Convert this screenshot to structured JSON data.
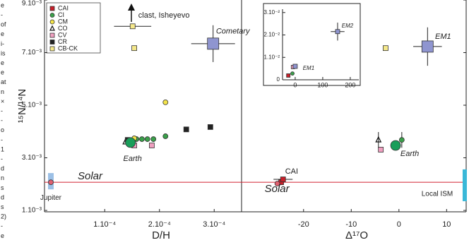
{
  "margin_text": [
    "e",
    "-",
    "of",
    "e",
    "i-",
    "is",
    "e",
    "e",
    "at",
    "n",
    "×",
    "-",
    "-",
    "o",
    "-",
    "1",
    "-",
    "d",
    "n",
    "s",
    "d",
    "s",
    "2)",
    "-",
    "e"
  ],
  "chart_data": [
    {
      "type": "scatter",
      "ylabel": "¹⁵N/¹⁴N",
      "xlabel": "D/H",
      "xlim": [
        -1e-05,
        0.00035
      ],
      "ylim": [
        0.001,
        0.009
      ],
      "xticks": [
        {
          "value": 0.0001,
          "label": "1.10⁻⁴"
        },
        {
          "value": 0.0002,
          "label": "2.10⁻⁴"
        },
        {
          "value": 0.0003,
          "label": "3.10⁻⁴"
        }
      ],
      "yticks": [
        {
          "value": 0.001,
          "label": "1.10⁻³"
        },
        {
          "value": 0.003,
          "label": "3.10⁻³"
        },
        {
          "value": 0.005,
          "label": "5.10⁻³"
        },
        {
          "value": 0.007,
          "label": "7.10⁻³"
        },
        {
          "value": 0.009,
          "label": "9.10⁻³"
        }
      ],
      "series": [
        {
          "name": "CAI",
          "color": "#c8202a",
          "marker": "square",
          "x": [
            0.000145,
            0.000149
          ],
          "y": [
            0.00366,
            0.00355
          ]
        },
        {
          "name": "CI",
          "color": "#3aa04a",
          "marker": "circle",
          "x": [
            0.000158,
            0.000168,
            0.000178,
            0.000189,
            0.000211
          ],
          "y": [
            0.00371,
            0.00371,
            0.00371,
            0.00371,
            0.00382
          ]
        },
        {
          "name": "CM",
          "color": "#f3e34a",
          "marker": "circle",
          "x": [
            0.000154,
            0.000211
          ],
          "y": [
            0.00374,
            0.00511
          ]
        },
        {
          "name": "CO",
          "color": "none",
          "marker": "triangle",
          "x": [
            0.000138
          ],
          "y": [
            0.0036
          ]
        },
        {
          "name": "CV",
          "color": "#f0a0c0",
          "marker": "square",
          "x": [
            0.000154,
            0.000186
          ],
          "y": [
            0.00347,
            0.00347
          ]
        },
        {
          "name": "CR",
          "color": "#222222",
          "marker": "square",
          "x": [
            0.000142,
            0.000249,
            0.000293
          ],
          "y": [
            0.00368,
            0.00408,
            0.00417
          ]
        },
        {
          "name": "CB-CK",
          "color": "#f5e88a",
          "marker": "square",
          "x": [
            0.000154
          ],
          "y": [
            0.00717
          ]
        }
      ],
      "labeled_points": [
        {
          "label": "Earth",
          "color": "#1a9e5a",
          "marker": "circle",
          "x": 0.000147,
          "y": 0.00358
        },
        {
          "label": "Solar",
          "color": "#e06070",
          "marker": "circle",
          "x": 1.6e-06,
          "y": 0.00207
        },
        {
          "label": "Cometary",
          "color": "#8f95d0",
          "marker": "square",
          "x": 0.000298,
          "y": 0.00734,
          "xerr": 4e-05,
          "yerr": 0.0007
        },
        {
          "label": "clast, Isheyevo",
          "color": "#f5e88a",
          "marker": "square",
          "x": 0.000151,
          "y": 0.008,
          "xerr": 3.4e-05
        }
      ],
      "ranges": [
        {
          "label": "Jupiter",
          "color": "#9cc0e6",
          "x": 1.6e-06,
          "y": [
            0.0018,
            0.00242
          ]
        }
      ]
    },
    {
      "type": "scatter",
      "xlabel": "Δ¹⁷O",
      "xlim": [
        -33,
        14.1
      ],
      "ylim": [
        0.001,
        0.009
      ],
      "xticks": [
        -20,
        -10,
        0,
        10
      ],
      "series": [
        {
          "color": "#3aa04a",
          "marker": "circle",
          "x": [
            0.6
          ],
          "y": [
            0.00368
          ],
          "yerr": [
            0.0003
          ]
        },
        {
          "color": "#f0a0c0",
          "marker": "square",
          "x": [
            -3.8
          ],
          "y": [
            0.00331
          ]
        },
        {
          "color": "none",
          "marker": "triangle",
          "x": [
            -4.3
          ],
          "y": [
            0.00368
          ],
          "yerr": [
            0.0003
          ]
        },
        {
          "color": "#f5e88a",
          "marker": "square",
          "x": [
            -2.8
          ],
          "y": [
            0.00717
          ]
        },
        {
          "color": "#c8202a",
          "marker": "square",
          "x": [
            -24.7
          ],
          "y": [
            0.00207
          ]
        }
      ],
      "labeled_points": [
        {
          "label": "Earth",
          "color": "#1a9e5a",
          "marker": "circle",
          "x": -0.7,
          "y": 0.00347
        },
        {
          "label": "CAI",
          "color": "#c8202a",
          "marker": "square",
          "x": -24.3,
          "y": 0.00218,
          "xerr": 2
        },
        {
          "label": "Solar",
          "color": "#e06070",
          "marker": "circle",
          "x": -25.5,
          "y": 0.00202
        },
        {
          "label": "EM1",
          "color": "#8f95d0",
          "marker": "square",
          "x": 6,
          "y": 0.00723,
          "xerr": 3,
          "yerr": 0.00073
        }
      ],
      "ranges": [
        {
          "label": "Local ISM",
          "color": "#3ab8d8",
          "x": 13.8,
          "y": [
            0.00135,
            0.00256
          ]
        }
      ]
    },
    {
      "type": "scatter",
      "xlim": [
        -46,
        231
      ],
      "ylim": [
        0,
        0.0315
      ],
      "xticks": [
        0,
        100,
        200
      ],
      "yticks": [
        0,
        {
          "value": 0.01,
          "label": "1.10⁻²"
        },
        {
          "value": 0.02,
          "label": "2.10⁻²"
        },
        {
          "value": 0.03,
          "label": "3.10⁻²"
        }
      ],
      "series": [
        {
          "color": "#f0a0c0",
          "marker": "square",
          "x": [
            -8
          ],
          "y": [
            0.0057
          ]
        },
        {
          "color": "#3aa04a",
          "marker": "circle",
          "x": [
            -10
          ],
          "y": [
            0.0028
          ]
        },
        {
          "color": "#c8202a",
          "marker": "square",
          "x": [
            -25
          ],
          "y": [
            0.0019
          ]
        }
      ],
      "labeled_points": [
        {
          "label": "EM2",
          "color": "#8f95d0",
          "marker": "square",
          "x": 154,
          "y": 0.0215,
          "xerr": 25,
          "yerr": 0.004
        },
        {
          "label": "EM1",
          "color": "#8f95d0",
          "marker": "square",
          "x": 0,
          "y": 0.006
        }
      ]
    }
  ]
}
